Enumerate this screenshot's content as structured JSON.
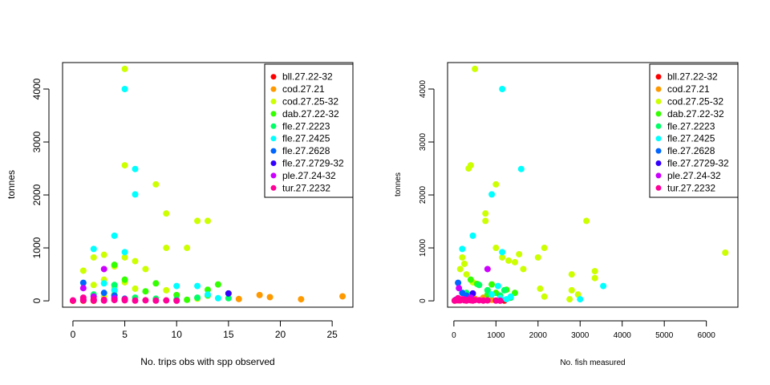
{
  "chart_data": [
    {
      "type": "scatter",
      "title": "",
      "xlabel": "No. trips obs with spp observed",
      "ylabel": "tonnes",
      "xlim": [
        -1,
        27
      ],
      "ylim": [
        -120,
        4500
      ],
      "x_ticks": [
        0,
        5,
        10,
        15,
        20,
        25
      ],
      "y_ticks": [
        0,
        1000,
        2000,
        3000,
        4000
      ],
      "legend_position": "top-right",
      "series": [
        {
          "name": "bll.27.22-32",
          "color": "#FF0000",
          "points": [
            [
              0,
              2
            ],
            [
              1,
              5
            ],
            [
              2,
              3
            ]
          ]
        },
        {
          "name": "cod.27.21",
          "color": "#FF9900",
          "points": [
            [
              16,
              35
            ],
            [
              18,
              110
            ],
            [
              19,
              70
            ],
            [
              22,
              30
            ],
            [
              26,
              85
            ]
          ]
        },
        {
          "name": "cod.27.25-32",
          "color": "#CCFF00",
          "points": [
            [
              5,
              4380
            ],
            [
              5,
              2560
            ],
            [
              8,
              2200
            ],
            [
              9,
              1650
            ],
            [
              12,
              1510
            ],
            [
              13,
              1510
            ],
            [
              9,
              1000
            ],
            [
              11,
              1000
            ],
            [
              5,
              820
            ],
            [
              3,
              870
            ],
            [
              2,
              820
            ],
            [
              4,
              650
            ],
            [
              6,
              750
            ],
            [
              7,
              600
            ],
            [
              1,
              570
            ],
            [
              3,
              400
            ],
            [
              5,
              350
            ],
            [
              2,
              300
            ],
            [
              4,
              250
            ],
            [
              6,
              230
            ],
            [
              4,
              130
            ],
            [
              3,
              80
            ],
            [
              9,
              200
            ],
            [
              12,
              40
            ]
          ]
        },
        {
          "name": "dab.27.22-32",
          "color": "#33FF00",
          "points": [
            [
              4,
              680
            ],
            [
              5,
              400
            ],
            [
              7,
              180
            ],
            [
              8,
              330
            ],
            [
              10,
              110
            ],
            [
              11,
              20
            ],
            [
              13,
              210
            ],
            [
              14,
              310
            ],
            [
              13,
              100
            ]
          ]
        },
        {
          "name": "fle.27.2223",
          "color": "#00FF66",
          "points": [
            [
              2,
              120
            ],
            [
              4,
              300
            ],
            [
              4,
              100
            ],
            [
              6,
              60
            ],
            [
              8,
              40
            ],
            [
              10,
              30
            ],
            [
              12,
              60
            ],
            [
              15,
              50
            ]
          ]
        },
        {
          "name": "fle.27.2425",
          "color": "#00FFFF",
          "points": [
            [
              5,
              4000
            ],
            [
              6,
              2490
            ],
            [
              6,
              2010
            ],
            [
              4,
              1230
            ],
            [
              2,
              980
            ],
            [
              5,
              920
            ],
            [
              10,
              280
            ],
            [
              12,
              280
            ],
            [
              13,
              120
            ],
            [
              14,
              50
            ],
            [
              3,
              330
            ],
            [
              4,
              200
            ]
          ]
        },
        {
          "name": "fle.27.2628",
          "color": "#0066FF",
          "points": [
            [
              1,
              340
            ],
            [
              3,
              150
            ],
            [
              4,
              100
            ],
            [
              5,
              40
            ]
          ]
        },
        {
          "name": "fle.27.2729-32",
          "color": "#3300FF",
          "points": [
            [
              15,
              140
            ],
            [
              1,
              20
            ]
          ]
        },
        {
          "name": "ple.27.24-32",
          "color": "#CC00FF",
          "points": [
            [
              3,
              600
            ],
            [
              1,
              240
            ],
            [
              2,
              80
            ],
            [
              4,
              50
            ]
          ]
        },
        {
          "name": "tur.27.2232",
          "color": "#FF0099",
          "points": [
            [
              0,
              8
            ],
            [
              1,
              15
            ],
            [
              1,
              60
            ],
            [
              2,
              30
            ],
            [
              2,
              10
            ],
            [
              3,
              20
            ],
            [
              3,
              5
            ],
            [
              4,
              15
            ],
            [
              5,
              10
            ],
            [
              5,
              30
            ],
            [
              6,
              5
            ],
            [
              7,
              10
            ],
            [
              8,
              5
            ],
            [
              9,
              8
            ],
            [
              10,
              3
            ]
          ]
        }
      ]
    },
    {
      "type": "scatter",
      "title": "",
      "xlabel": "No. fish measured",
      "ylabel": "tonnes",
      "xlim": [
        -150,
        6750
      ],
      "ylim": [
        -120,
        4500
      ],
      "x_ticks": [
        0,
        1000,
        2000,
        3000,
        4000,
        5000,
        6000
      ],
      "y_ticks": [
        0,
        1000,
        2000,
        3000,
        4000
      ],
      "legend_position": "top-right",
      "series": [
        {
          "name": "bll.27.22-32",
          "color": "#FF0000",
          "points": [
            [
              20,
              5
            ],
            [
              1200,
              5
            ],
            [
              100,
              10
            ]
          ]
        },
        {
          "name": "cod.27.21",
          "color": "#FF9900",
          "points": [
            [
              150,
              30
            ],
            [
              300,
              80
            ],
            [
              500,
              40
            ],
            [
              700,
              60
            ],
            [
              900,
              20
            ]
          ]
        },
        {
          "name": "cod.27.25-32",
          "color": "#CCFF00",
          "points": [
            [
              500,
              4380
            ],
            [
              400,
              2560
            ],
            [
              350,
              2500
            ],
            [
              1000,
              2200
            ],
            [
              750,
              1650
            ],
            [
              750,
              1510
            ],
            [
              3150,
              1510
            ],
            [
              6450,
              910
            ],
            [
              2150,
              1000
            ],
            [
              1000,
              1000
            ],
            [
              1300,
              760
            ],
            [
              1450,
              730
            ],
            [
              1650,
              600
            ],
            [
              1550,
              880
            ],
            [
              1150,
              820
            ],
            [
              2000,
              820
            ],
            [
              3350,
              560
            ],
            [
              2800,
              500
            ],
            [
              3350,
              430
            ],
            [
              200,
              820
            ],
            [
              250,
              700
            ],
            [
              150,
              600
            ],
            [
              300,
              500
            ],
            [
              450,
              350
            ],
            [
              600,
              300
            ],
            [
              800,
              200
            ],
            [
              2050,
              230
            ],
            [
              2800,
              200
            ],
            [
              2950,
              120
            ],
            [
              2750,
              30
            ],
            [
              2150,
              80
            ]
          ]
        },
        {
          "name": "dab.27.22-32",
          "color": "#33FF00",
          "points": [
            [
              400,
              400
            ],
            [
              900,
              310
            ],
            [
              1000,
              150
            ],
            [
              1250,
              210
            ],
            [
              1450,
              150
            ],
            [
              800,
              120
            ],
            [
              550,
              320
            ]
          ]
        },
        {
          "name": "fle.27.2223",
          "color": "#00FF66",
          "points": [
            [
              600,
              300
            ],
            [
              800,
              200
            ],
            [
              1100,
              100
            ],
            [
              1200,
              200
            ],
            [
              300,
              150
            ],
            [
              1350,
              60
            ]
          ]
        },
        {
          "name": "fle.27.2425",
          "color": "#00FFFF",
          "points": [
            [
              1150,
              4000
            ],
            [
              1600,
              2490
            ],
            [
              900,
              2010
            ],
            [
              450,
              1230
            ],
            [
              200,
              980
            ],
            [
              1150,
              920
            ],
            [
              3550,
              280
            ],
            [
              3000,
              30
            ],
            [
              1050,
              280
            ],
            [
              900,
              120
            ],
            [
              1100,
              50
            ],
            [
              1250,
              30
            ],
            [
              1350,
              80
            ]
          ]
        },
        {
          "name": "fle.27.2628",
          "color": "#0066FF",
          "points": [
            [
              100,
              340
            ],
            [
              200,
              150
            ],
            [
              300,
              100
            ]
          ]
        },
        {
          "name": "fle.27.2729-32",
          "color": "#3300FF",
          "points": [
            [
              450,
              140
            ],
            [
              50,
              20
            ]
          ]
        },
        {
          "name": "ple.27.24-32",
          "color": "#CC00FF",
          "points": [
            [
              800,
              600
            ],
            [
              120,
              240
            ],
            [
              400,
              60
            ],
            [
              250,
              30
            ]
          ]
        },
        {
          "name": "tur.27.2232",
          "color": "#FF0099",
          "points": [
            [
              20,
              5
            ],
            [
              50,
              10
            ],
            [
              80,
              20
            ],
            [
              100,
              50
            ],
            [
              120,
              15
            ],
            [
              150,
              8
            ],
            [
              200,
              30
            ],
            [
              250,
              10
            ],
            [
              300,
              5
            ],
            [
              350,
              20
            ],
            [
              400,
              10
            ],
            [
              450,
              5
            ],
            [
              500,
              15
            ],
            [
              600,
              10
            ],
            [
              700,
              5
            ],
            [
              800,
              8
            ],
            [
              1000,
              5
            ],
            [
              1100,
              3
            ]
          ]
        }
      ]
    }
  ]
}
